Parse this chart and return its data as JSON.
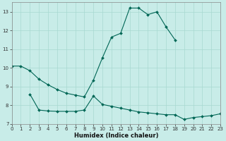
{
  "xlabel": "Humidex (Indice chaleur)",
  "background_color": "#c8ece8",
  "grid_color": "#a8d8d0",
  "line_color": "#006655",
  "series1": {
    "x": [
      0,
      1,
      2,
      3,
      4,
      5,
      6,
      7,
      8,
      9,
      10,
      11,
      12,
      13,
      14,
      15,
      16,
      17,
      18
    ],
    "y": [
      10.1,
      10.1,
      9.85,
      9.4,
      9.1,
      8.85,
      8.65,
      8.55,
      8.45,
      9.35,
      10.55,
      11.65,
      11.85,
      13.2,
      13.2,
      12.85,
      13.0,
      12.2,
      11.5
    ]
  },
  "series2": {
    "x": [
      2,
      3,
      4,
      5,
      6,
      7,
      8,
      9,
      10,
      11,
      12,
      13,
      14,
      15,
      16,
      17,
      18,
      19,
      20,
      21,
      22,
      23
    ],
    "y": [
      8.6,
      7.75,
      7.7,
      7.68,
      7.68,
      7.68,
      7.75,
      8.5,
      8.05,
      7.95,
      7.85,
      7.75,
      7.65,
      7.6,
      7.55,
      7.5,
      7.5,
      7.25,
      7.35,
      7.4,
      7.45,
      7.55
    ]
  },
  "xlim": [
    0,
    23
  ],
  "ylim": [
    7.0,
    13.5
  ],
  "yticks": [
    7,
    8,
    9,
    10,
    11,
    12,
    13
  ],
  "xticks": [
    0,
    1,
    2,
    3,
    4,
    5,
    6,
    7,
    8,
    9,
    10,
    11,
    12,
    13,
    14,
    15,
    16,
    17,
    18,
    19,
    20,
    21,
    22,
    23
  ],
  "xlabel_fontsize": 6,
  "tick_fontsize": 5,
  "linewidth": 0.8,
  "markersize": 2.0
}
